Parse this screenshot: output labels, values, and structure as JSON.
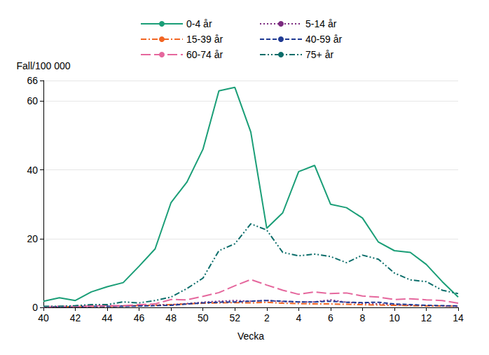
{
  "chart_data": {
    "type": "line",
    "x_label": "Vecka",
    "y_label": "Fall/100 000",
    "categories": [
      "40",
      null,
      "42",
      null,
      "44",
      null,
      "46",
      null,
      "48",
      null,
      "50",
      null,
      "52",
      null,
      "2",
      null,
      "4",
      null,
      "6",
      null,
      "8",
      null,
      "10",
      null,
      "12",
      null,
      "14"
    ],
    "series": [
      {
        "name": "0-4 år",
        "color": "#1a9e77",
        "line_style": "solid",
        "values": [
          1.8,
          2.8,
          2.0,
          4.5,
          6.0,
          7.2,
          12.0,
          17.0,
          30.5,
          36.5,
          46.0,
          63.0,
          64.0,
          51.0,
          23.0,
          27.5,
          39.5,
          41.3,
          30.0,
          29.0,
          26.0,
          19.0,
          16.5,
          16.0,
          12.5,
          7.5,
          3.0
        ]
      },
      {
        "name": "5-14 år",
        "color": "#7b2a7f",
        "line_style": "dotted",
        "values": [
          0.1,
          0.2,
          0.2,
          0.3,
          0.3,
          0.4,
          0.5,
          0.7,
          0.8,
          1.1,
          1.5,
          1.8,
          2.0,
          1.8,
          2.0,
          1.7,
          1.6,
          1.6,
          2.2,
          1.5,
          1.2,
          1.0,
          0.8,
          0.6,
          0.5,
          0.4,
          0.3
        ]
      },
      {
        "name": "15-39 år",
        "color": "#f26522",
        "line_style": "dashdot",
        "values": [
          0.2,
          0.2,
          0.2,
          0.3,
          0.3,
          0.4,
          0.5,
          0.6,
          0.8,
          1.0,
          1.2,
          1.3,
          1.4,
          1.3,
          1.5,
          1.2,
          1.1,
          1.0,
          1.0,
          0.9,
          0.8,
          0.7,
          0.6,
          0.5,
          0.4,
          0.4,
          0.3
        ]
      },
      {
        "name": "40-59 år",
        "color": "#1f3a93",
        "line_style": "dashed",
        "values": [
          0.2,
          0.2,
          0.2,
          0.3,
          0.3,
          0.3,
          0.4,
          0.5,
          0.6,
          1.0,
          1.3,
          1.5,
          1.6,
          1.8,
          2.0,
          1.8,
          1.6,
          1.6,
          1.8,
          1.5,
          1.4,
          1.5,
          1.0,
          0.8,
          0.6,
          0.5,
          0.4
        ]
      },
      {
        "name": "60-74 år",
        "color": "#e5679d",
        "line_style": "longdash",
        "values": [
          0.2,
          0.3,
          0.3,
          0.4,
          0.5,
          0.5,
          0.8,
          1.0,
          2.3,
          2.2,
          3.2,
          4.3,
          6.3,
          8.1,
          6.5,
          5.0,
          3.8,
          4.5,
          4.0,
          4.2,
          3.3,
          3.0,
          2.3,
          2.5,
          2.2,
          2.0,
          1.2
        ]
      },
      {
        "name": "75+ år",
        "color": "#0b6d6a",
        "line_style": "dashdotdot",
        "values": [
          0.3,
          0.3,
          0.5,
          0.8,
          0.8,
          1.6,
          1.3,
          2.0,
          3.0,
          5.5,
          8.5,
          16.5,
          18.5,
          24.3,
          22.5,
          16.0,
          15.0,
          15.5,
          14.8,
          13.0,
          15.2,
          14.0,
          10.0,
          8.0,
          7.5,
          5.0,
          4.0
        ]
      }
    ],
    "ylim": [
      0,
      66
    ],
    "yticks": [
      0,
      20,
      40,
      60
    ],
    "grid": true,
    "legend": "top"
  }
}
